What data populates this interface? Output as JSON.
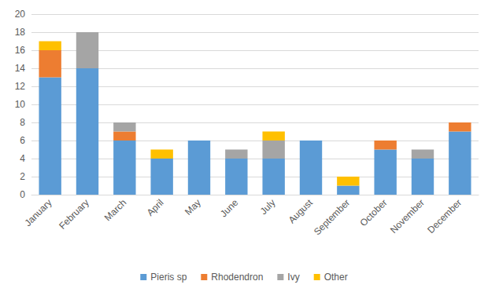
{
  "chart_data": {
    "type": "bar",
    "stacked": true,
    "grid": true,
    "legend": "bottom",
    "categories": [
      "January",
      "February",
      "March",
      "April",
      "May",
      "June",
      "July",
      "August",
      "September",
      "October",
      "November",
      "December"
    ],
    "series": [
      {
        "name": "Pieris sp",
        "color": "#5b9bd5",
        "values": [
          13,
          14,
          6,
          4,
          6,
          4,
          4,
          6,
          1,
          5,
          4,
          7
        ]
      },
      {
        "name": "Rhodendron",
        "color": "#ed7d31",
        "values": [
          3,
          0,
          1,
          0,
          0,
          0,
          0,
          0,
          0,
          1,
          0,
          1
        ]
      },
      {
        "name": "Ivy",
        "color": "#a5a5a5",
        "values": [
          0,
          4,
          1,
          0,
          0,
          1,
          2,
          0,
          0,
          0,
          1,
          0
        ]
      },
      {
        "name": "Other",
        "color": "#ffc000",
        "values": [
          1,
          0,
          0,
          1,
          0,
          0,
          1,
          0,
          1,
          0,
          0,
          0
        ]
      }
    ],
    "ylim": [
      0,
      20
    ],
    "yticks": [
      0,
      2,
      4,
      6,
      8,
      10,
      12,
      14,
      16,
      18,
      20
    ]
  }
}
